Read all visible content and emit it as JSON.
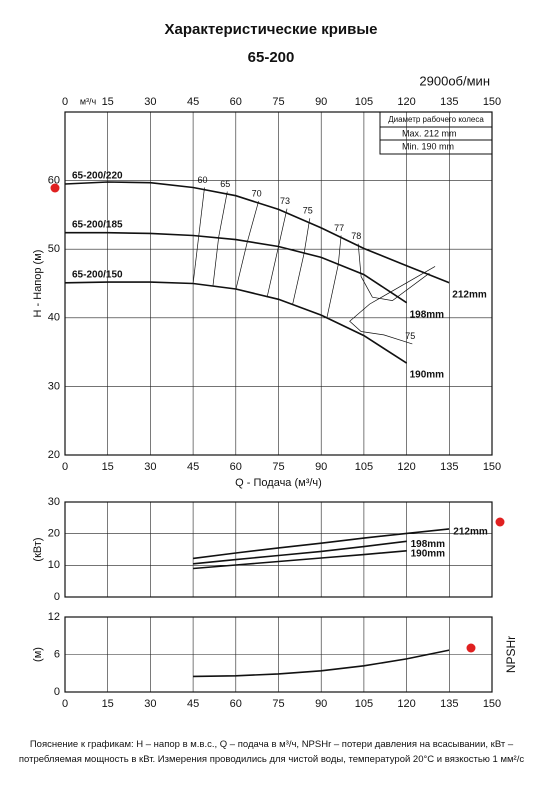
{
  "title": "Характеристические кривые",
  "subtitle": "65-200",
  "speed": "2900об/мин",
  "impeller_box": {
    "title": "Диаметр рабочего колеса",
    "max": "Max.  212 mm",
    "min": "Min.   190 mm"
  },
  "chart_data": [
    {
      "type": "line",
      "x_label": "Q - Подача (м³/ч)",
      "x_unit": "м³/ч",
      "y_label": "H - Напор (м)",
      "xlim": [
        0,
        150
      ],
      "xticks": [
        0,
        15,
        30,
        45,
        60,
        75,
        90,
        105,
        120,
        135,
        150
      ],
      "ylim": [
        20,
        70
      ],
      "yticks": [
        20,
        30,
        40,
        50,
        60
      ],
      "grid": true,
      "series": [
        {
          "name": "65-200/220",
          "end_label": "212mm",
          "color": "#111",
          "x": [
            0,
            15,
            30,
            45,
            60,
            75,
            90,
            105,
            120,
            135
          ],
          "values": [
            59.5,
            59.8,
            59.7,
            59,
            57.8,
            55.8,
            53.1,
            50.1,
            47.6,
            45.1
          ]
        },
        {
          "name": "65-200/185",
          "end_label": "198mm",
          "color": "#111",
          "x": [
            0,
            15,
            30,
            45,
            60,
            75,
            90,
            105,
            120
          ],
          "values": [
            52.4,
            52.4,
            52.3,
            52,
            51.4,
            50.4,
            48.8,
            46.3,
            42.2
          ]
        },
        {
          "name": "65-200/150",
          "end_label": "190mm",
          "color": "#111",
          "x": [
            0,
            15,
            30,
            45,
            60,
            75,
            90,
            105,
            120
          ],
          "values": [
            45.1,
            45.2,
            45.2,
            45,
            44.2,
            42.7,
            40.4,
            37.4,
            33.4
          ]
        }
      ],
      "efficiency": [
        {
          "label": 60,
          "x": [
            49,
            47,
            45
          ],
          "values": [
            59,
            52,
            45
          ]
        },
        {
          "label": 65,
          "x": [
            57,
            54,
            52
          ],
          "values": [
            58.4,
            51.8,
            44.7
          ]
        },
        {
          "label": 70,
          "x": [
            68,
            64,
            60
          ],
          "values": [
            57,
            51,
            44.1
          ]
        },
        {
          "label": 73,
          "x": [
            78,
            75,
            71
          ],
          "values": [
            55.9,
            50.4,
            43
          ]
        },
        {
          "label": 75,
          "x": [
            86,
            84,
            80
          ],
          "values": [
            54.5,
            49.4,
            42
          ]
        },
        {
          "label": 77,
          "x": [
            97,
            96,
            92
          ],
          "values": [
            52,
            47.8,
            40
          ]
        },
        {
          "label": 78,
          "x": [
            103,
            104,
            108,
            115,
            128
          ],
          "values": [
            50.8,
            46,
            43,
            42.5,
            46.5
          ]
        },
        {
          "label": 75,
          "x": [
            122,
            112,
            104,
            100,
            107,
            130
          ],
          "values": [
            36.2,
            37.5,
            38,
            39.5,
            42,
            47.5
          ]
        }
      ]
    },
    {
      "type": "line",
      "y_label": "(кВт)",
      "xlim": [
        0,
        150
      ],
      "xticks": [
        0,
        15,
        30,
        45,
        60,
        75,
        90,
        105,
        120,
        135,
        150
      ],
      "ylim": [
        0,
        30
      ],
      "yticks": [
        0,
        10,
        20,
        30
      ],
      "grid": true,
      "series": [
        {
          "name": "212mm",
          "color": "#111",
          "x": [
            45,
            60,
            75,
            90,
            105,
            120,
            135
          ],
          "values": [
            12.2,
            13.9,
            15.5,
            17,
            18.6,
            20.1,
            21.5
          ]
        },
        {
          "name": "198mm",
          "color": "#111",
          "x": [
            45,
            60,
            75,
            90,
            105,
            120
          ],
          "values": [
            10.5,
            11.8,
            13.1,
            14.4,
            15.9,
            17.6
          ]
        },
        {
          "name": "190mm",
          "color": "#111",
          "x": [
            45,
            60,
            75,
            90,
            105,
            120
          ],
          "values": [
            9,
            10.1,
            11.2,
            12.3,
            13.4,
            14.6
          ]
        }
      ]
    },
    {
      "type": "line",
      "y_label": "(м)",
      "side_label": "NPSHr",
      "xlim": [
        0,
        150
      ],
      "xticks": [
        0,
        15,
        30,
        45,
        60,
        75,
        90,
        105,
        120,
        135,
        150
      ],
      "ylim": [
        0,
        12
      ],
      "yticks": [
        0,
        6,
        12
      ],
      "grid": true,
      "series": [
        {
          "color": "#111",
          "x": [
            45,
            60,
            75,
            90,
            105,
            120,
            135
          ],
          "values": [
            2.5,
            2.6,
            2.9,
            3.4,
            4.2,
            5.3,
            6.7
          ]
        }
      ]
    }
  ],
  "footnote": "Пояснение к графикам: H – напор в м.в.с., Q – подача в м³/ч, NPSHr – потери давления на всасывании, кВт – потребляемая мощность в кВт. Измерения проводились для чистой воды, температурой 20°С и вязкостью 1 мм²/с"
}
